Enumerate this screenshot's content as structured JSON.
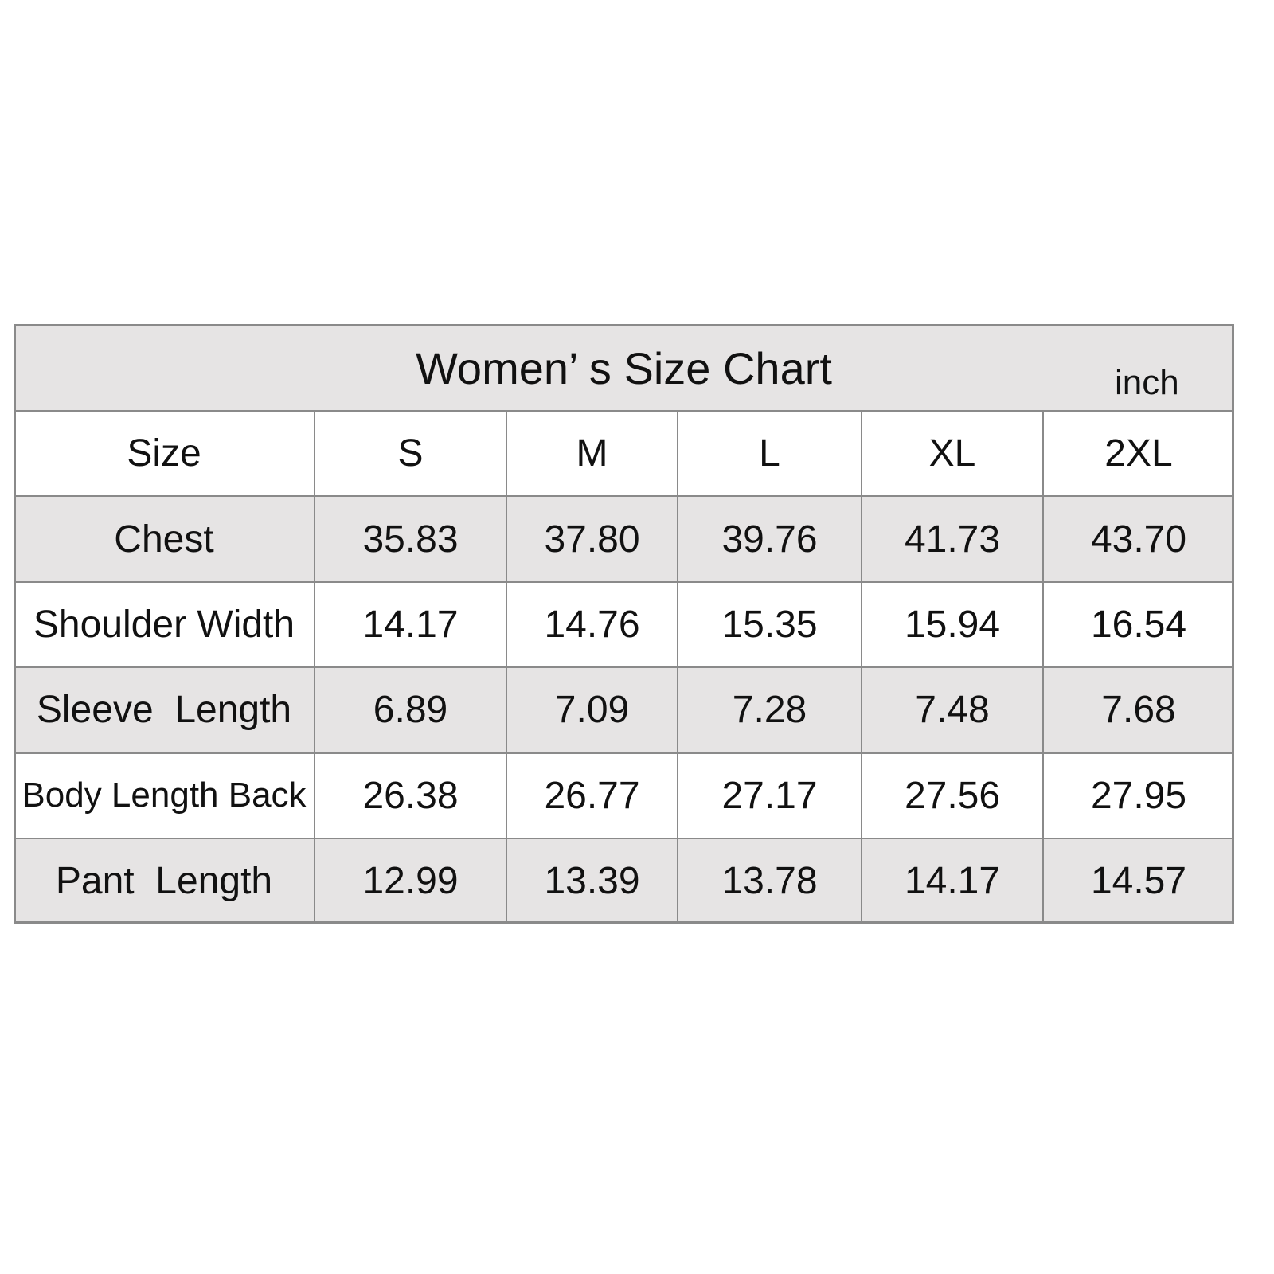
{
  "title": "Women’ s Size Chart",
  "unit": "inch",
  "header": [
    "Size",
    "S",
    "M",
    "L",
    "XL",
    "2XL"
  ],
  "rows": [
    [
      "Chest",
      "35.83",
      "37.80",
      "39.76",
      "41.73",
      "43.70"
    ],
    [
      "Shoulder Width",
      "14.17",
      "14.76",
      "15.35",
      "15.94",
      "16.54"
    ],
    [
      "Sleeve  Length",
      "6.89",
      "7.09",
      "7.28",
      "7.48",
      "7.68"
    ],
    [
      "Body Length Back",
      "26.38",
      "26.77",
      "27.17",
      "27.56",
      "27.95"
    ],
    [
      "Pant  Length",
      "12.99",
      "13.39",
      "13.78",
      "14.17",
      "14.57"
    ]
  ]
}
